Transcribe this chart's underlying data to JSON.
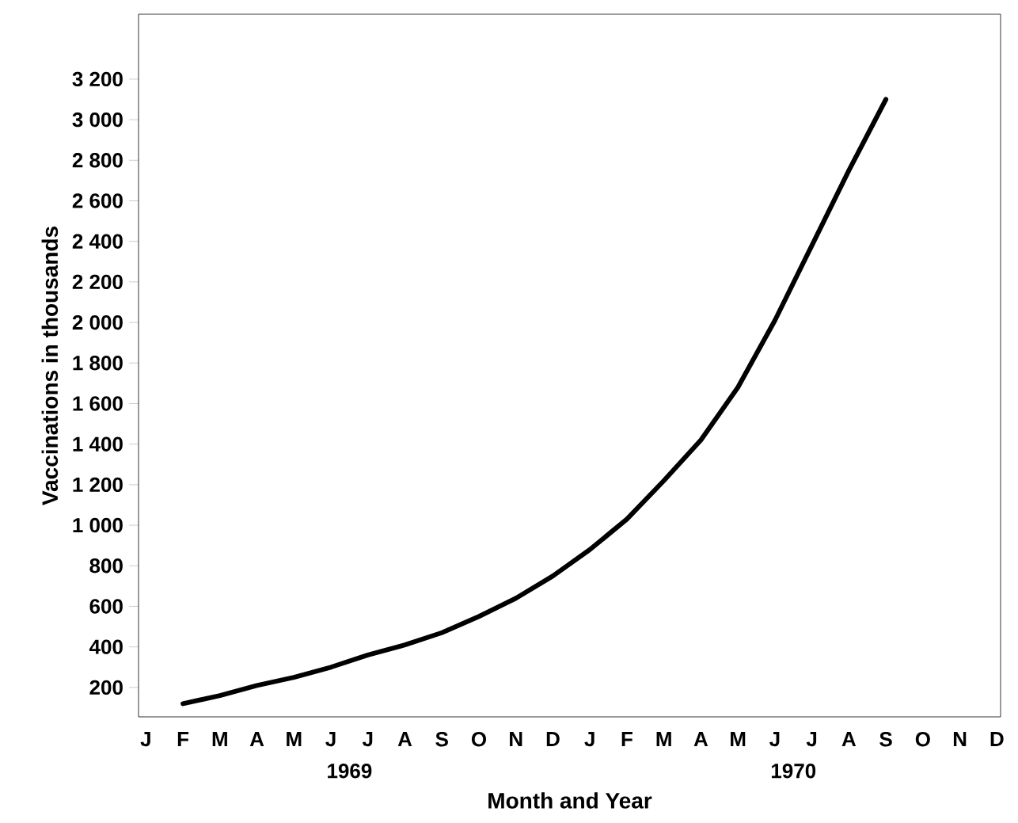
{
  "chart_data": {
    "type": "line",
    "xlabel": "Month and Year",
    "ylabel": "Vaccinations  in  thousands",
    "categories": [
      "J",
      "F",
      "M",
      "A",
      "M",
      "J",
      "J",
      "A",
      "S",
      "O",
      "N",
      "D",
      "J",
      "F",
      "M",
      "A",
      "M",
      "J",
      "J",
      "A",
      "S",
      "O",
      "N",
      "D"
    ],
    "series": [
      {
        "color": "#000000",
        "values": [
          null,
          120,
          160,
          210,
          250,
          300,
          360,
          410,
          470,
          550,
          640,
          750,
          880,
          1030,
          1220,
          1420,
          1680,
          2010,
          2380,
          2750,
          3100,
          null,
          null,
          null
        ]
      }
    ],
    "ylim": [
      55,
      3520
    ],
    "yticks": [
      {
        "value": 200,
        "label": "200"
      },
      {
        "value": 400,
        "label": "400"
      },
      {
        "value": 600,
        "label": "600"
      },
      {
        "value": 800,
        "label": "800"
      },
      {
        "value": 1000,
        "label": "1 000"
      },
      {
        "value": 1200,
        "label": "1 200"
      },
      {
        "value": 1400,
        "label": "1 400"
      },
      {
        "value": 1600,
        "label": "1 600"
      },
      {
        "value": 1800,
        "label": "1 800"
      },
      {
        "value": 2000,
        "label": "2 000"
      },
      {
        "value": 2200,
        "label": "2 200"
      },
      {
        "value": 2400,
        "label": "2 400"
      },
      {
        "value": 2600,
        "label": "2 600"
      },
      {
        "value": 2800,
        "label": "2 800"
      },
      {
        "value": 3000,
        "label": "3 000"
      },
      {
        "value": 3200,
        "label": "3 200"
      }
    ],
    "annotations": [
      "1969",
      "1970"
    ],
    "marker": "none",
    "line_style": "solid"
  }
}
